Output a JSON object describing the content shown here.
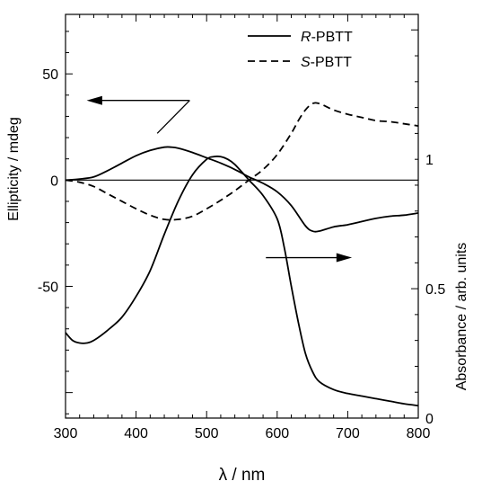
{
  "chart_data": {
    "type": "line",
    "xlabel": "λ / nm",
    "ylabel_left": "Ellipticity / mdeg",
    "ylabel_right": "Absorbance / arb. units",
    "xlim": [
      300,
      800
    ],
    "ylim_left": [
      -112,
      78
    ],
    "ylim_right": [
      0,
      1.56
    ],
    "x_ticks": [
      300,
      400,
      500,
      600,
      700,
      800
    ],
    "left_ticks": [
      -50,
      0,
      50
    ],
    "right_ticks": [
      0,
      0.5,
      1
    ],
    "zero_line": 0,
    "legend_placement": "top-right",
    "arrows": [
      {
        "direction": "left",
        "axis": "left"
      },
      {
        "direction": "right",
        "axis": "right"
      }
    ],
    "series": [
      {
        "name": "R-PBTT",
        "name_italic": "R",
        "name_rest": "-PBTT",
        "style": "solid",
        "axis": "left",
        "x": [
          300,
          320,
          340,
          360,
          380,
          400,
          420,
          440,
          450,
          460,
          480,
          500,
          520,
          540,
          560,
          580,
          600,
          620,
          640,
          650,
          660,
          680,
          700,
          720,
          740,
          760,
          780,
          800
        ],
        "y": [
          0,
          0.5,
          1.5,
          4.5,
          8,
          11.5,
          14,
          15.5,
          15.5,
          15,
          13,
          10.5,
          8,
          5,
          1.5,
          -1.5,
          -5.5,
          -12,
          -21.5,
          -24,
          -24,
          -22,
          -21,
          -19.5,
          -18,
          -17,
          -16.5,
          -15.5
        ]
      },
      {
        "name": "S-PBTT",
        "name_italic": "S",
        "name_rest": "-PBTT",
        "style": "dashed",
        "axis": "left",
        "x": [
          300,
          320,
          340,
          360,
          380,
          400,
          420,
          440,
          460,
          480,
          500,
          520,
          540,
          560,
          580,
          600,
          620,
          630,
          640,
          650,
          660,
          680,
          700,
          720,
          740,
          760,
          780,
          800
        ],
        "y": [
          0,
          -1,
          -3,
          -6.5,
          -10,
          -13.5,
          -16.5,
          -18.5,
          -18.5,
          -17,
          -13.5,
          -9.5,
          -5,
          0,
          5,
          12,
          22,
          28,
          33,
          36,
          36,
          33,
          31,
          29.5,
          28,
          27.5,
          26.5,
          25.5
        ]
      },
      {
        "name": "Absorbance",
        "style": "solid",
        "axis": "right",
        "x": [
          300,
          310,
          320,
          330,
          340,
          360,
          380,
          400,
          420,
          440,
          460,
          480,
          500,
          510,
          520,
          530,
          540,
          560,
          580,
          600,
          610,
          620,
          630,
          640,
          650,
          660,
          680,
          700,
          720,
          740,
          760,
          780,
          800
        ],
        "y": [
          0.33,
          0.3,
          0.29,
          0.29,
          0.3,
          0.34,
          0.39,
          0.47,
          0.57,
          0.71,
          0.84,
          0.94,
          1.0,
          1.01,
          1.01,
          1.0,
          0.98,
          0.92,
          0.86,
          0.77,
          0.66,
          0.51,
          0.37,
          0.25,
          0.18,
          0.14,
          0.11,
          0.095,
          0.085,
          0.075,
          0.065,
          0.055,
          0.048
        ]
      }
    ]
  }
}
